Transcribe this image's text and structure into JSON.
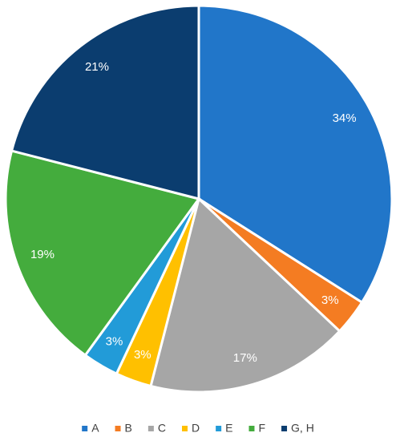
{
  "chart_data": {
    "type": "pie",
    "categories": [
      "A",
      "B",
      "C",
      "D",
      "E",
      "F",
      "G, H"
    ],
    "values": [
      34,
      3,
      17,
      3,
      3,
      19,
      21
    ],
    "value_labels": [
      "34%",
      "3%",
      "17%",
      "3%",
      "3%",
      "19%",
      "21%"
    ],
    "colors": [
      "#2176c9",
      "#f47c22",
      "#a6a6a6",
      "#ffc000",
      "#229bd8",
      "#44ac3d",
      "#0b3d6f"
    ],
    "legend": "bottom"
  }
}
